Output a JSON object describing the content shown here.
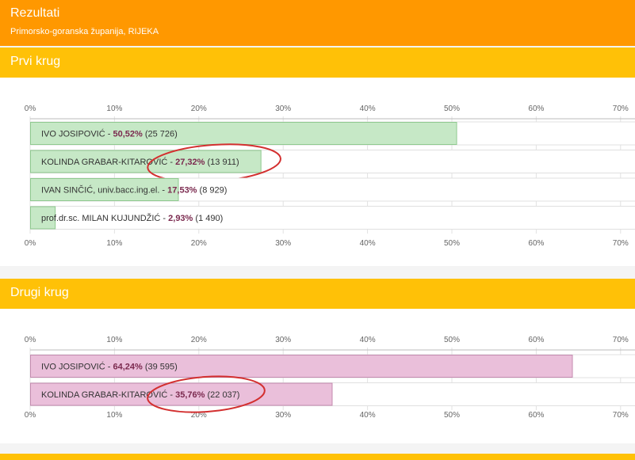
{
  "header": {
    "title": "Rezultati",
    "subtitle": "Primorsko-goranska županija, RIJEKA"
  },
  "colors": {
    "header_bg": "#ff9800",
    "section_bg": "#ffc107",
    "round1_bar": "#c6e8c6",
    "round1_bar_border": "#8fc98f",
    "round2_bar": "#eabfda",
    "round2_bar_border": "#c48bb0",
    "annotation_circle": "#d32f2f",
    "value_text": "#7b2a4f"
  },
  "chart_data": [
    {
      "type": "bar",
      "orientation": "horizontal",
      "title": "Prvi krug",
      "x_ticks": [
        "0%",
        "10%",
        "20%",
        "30%",
        "40%",
        "50%",
        "60%",
        "70%"
      ],
      "xlim": [
        0,
        70
      ],
      "grid": true,
      "bars": [
        {
          "name": "IVO JOSIPOVIĆ",
          "pct": 50.52,
          "label_pct": "50,52%",
          "votes": "(25 726)"
        },
        {
          "name": "KOLINDA GRABAR-KITAROVIĆ",
          "pct": 27.32,
          "label_pct": "27,32%",
          "votes": "(13 911)",
          "annotated": true
        },
        {
          "name": "IVAN SINČIĆ, univ.bacc.ing.el.",
          "pct": 17.53,
          "label_pct": "17,53%",
          "votes": "(8 929)"
        },
        {
          "name": "prof.dr.sc. MILAN KUJUNDŽIĆ",
          "pct": 2.93,
          "label_pct": "2,93%",
          "votes": "(1 490)"
        }
      ]
    },
    {
      "type": "bar",
      "orientation": "horizontal",
      "title": "Drugi krug",
      "x_ticks": [
        "0%",
        "10%",
        "20%",
        "30%",
        "40%",
        "50%",
        "60%",
        "70%"
      ],
      "xlim": [
        0,
        70
      ],
      "grid": true,
      "bars": [
        {
          "name": "IVO JOSIPOVIĆ",
          "pct": 64.24,
          "label_pct": "64,24%",
          "votes": "(39 595)"
        },
        {
          "name": "KOLINDA GRABAR-KITAROVIĆ",
          "pct": 35.76,
          "label_pct": "35,76%",
          "votes": "(22 037)",
          "annotated": true
        }
      ]
    }
  ]
}
